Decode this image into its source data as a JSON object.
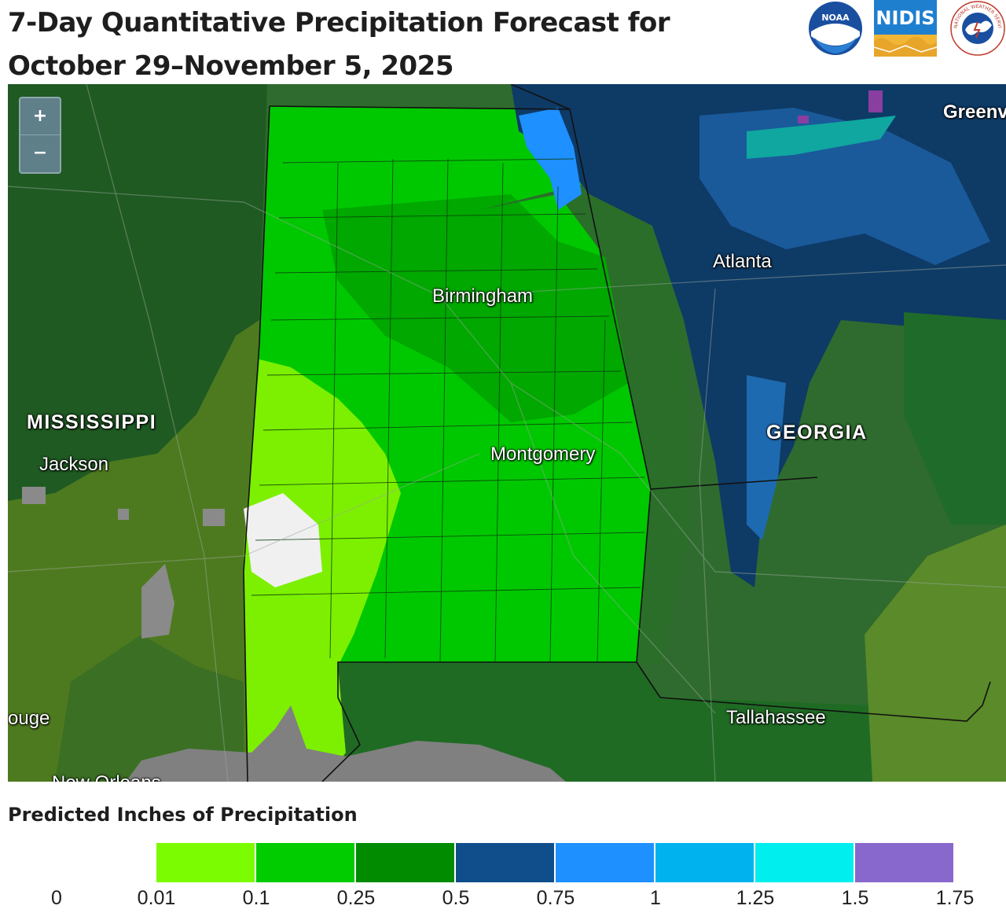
{
  "title": "7-Day Quantitative Precipitation Forecast for October 29–November 5, 2025",
  "logos": {
    "noaa": {
      "text": "NOAA"
    },
    "nidis": {
      "text": "NIDIS"
    },
    "nws": {
      "text": "NATIONAL WEATHER SERVICE"
    }
  },
  "map": {
    "zoom_in_label": "+",
    "zoom_out_label": "−",
    "labels": {
      "mississippi": "MISSISSIPPI",
      "georgia": "GEORGIA",
      "jackson": "Jackson",
      "birmingham": "Birmingham",
      "montgomery": "Montgomery",
      "atlanta": "Atlanta",
      "tallahassee": "Tallahassee",
      "baton_rouge_partial": "ouge",
      "greenville_partial": "Greenv",
      "new_orleans_partial": "New Orleans"
    }
  },
  "legend": {
    "title": "Predicted Inches of Precipitation",
    "ticks": [
      "0",
      "0.01",
      "0.1",
      "0.25",
      "0.5",
      "0.75",
      "1",
      "1.25",
      "1.5",
      "1.75"
    ],
    "bins": [
      {
        "from": "0.01",
        "to": "0.1",
        "color": "#7cfc00"
      },
      {
        "from": "0.1",
        "to": "0.25",
        "color": "#00cc00"
      },
      {
        "from": "0.25",
        "to": "0.5",
        "color": "#008b00"
      },
      {
        "from": "0.5",
        "to": "0.75",
        "color": "#104e8b"
      },
      {
        "from": "0.75",
        "to": "1",
        "color": "#1e90ff"
      },
      {
        "from": "1",
        "to": "1.25",
        "color": "#00b2ee"
      },
      {
        "from": "1.25",
        "to": "1.5",
        "color": "#00eeee"
      },
      {
        "from": "1.5",
        "to": "1.75",
        "color": "#8968cd"
      }
    ],
    "zero_color": "#f0f0f0"
  }
}
